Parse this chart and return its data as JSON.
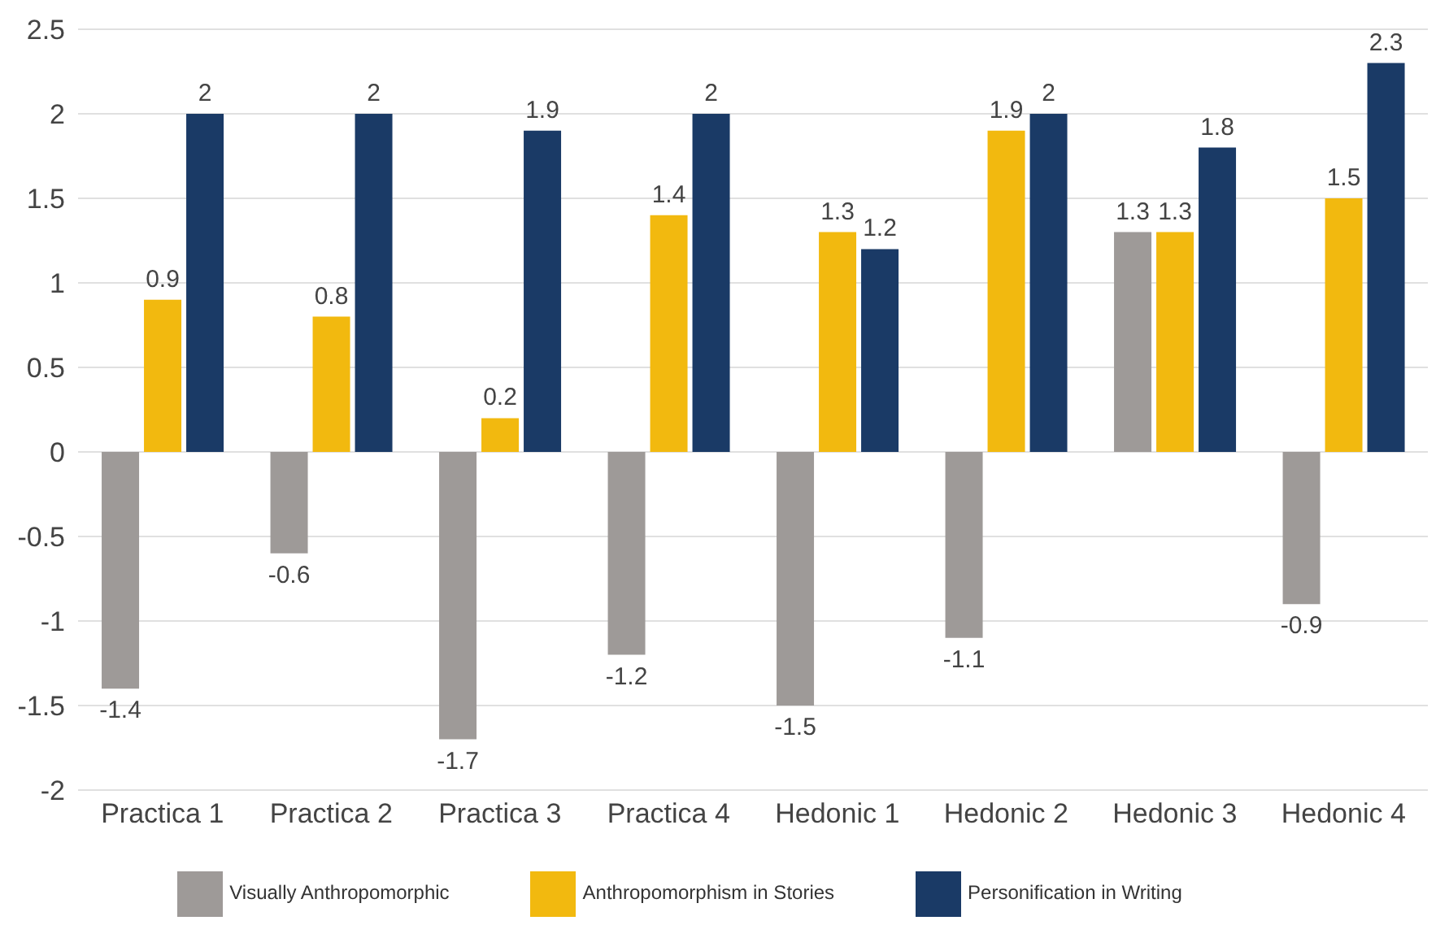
{
  "chart_data": {
    "type": "bar",
    "categories": [
      "Practica 1",
      "Practica 2",
      "Practica 3",
      "Practica 4",
      "Hedonic 1",
      "Hedonic 2",
      "Hedonic 3",
      "Hedonic 4"
    ],
    "series": [
      {
        "name": "Visually Anthropomorphic",
        "color": "#9e9a98",
        "values": [
          -1.4,
          -0.6,
          -1.7,
          -1.2,
          -1.5,
          -1.1,
          1.3,
          -0.9
        ]
      },
      {
        "name": "Anthropomorphism in Stories",
        "color": "#f2b90f",
        "values": [
          0.9,
          0.8,
          0.2,
          1.4,
          1.3,
          1.9,
          1.3,
          1.5
        ]
      },
      {
        "name": "Personification in Writing",
        "color": "#1a3a66",
        "values": [
          2,
          2,
          1.9,
          2,
          1.2,
          2,
          1.8,
          2.3
        ]
      }
    ],
    "ylim": [
      -2,
      2.5
    ],
    "yticks": [
      -2,
      -1.5,
      -1,
      -0.5,
      0,
      0.5,
      1,
      1.5,
      2,
      2.5
    ],
    "grid": "y",
    "legend": "bottom",
    "data_labels": true
  }
}
